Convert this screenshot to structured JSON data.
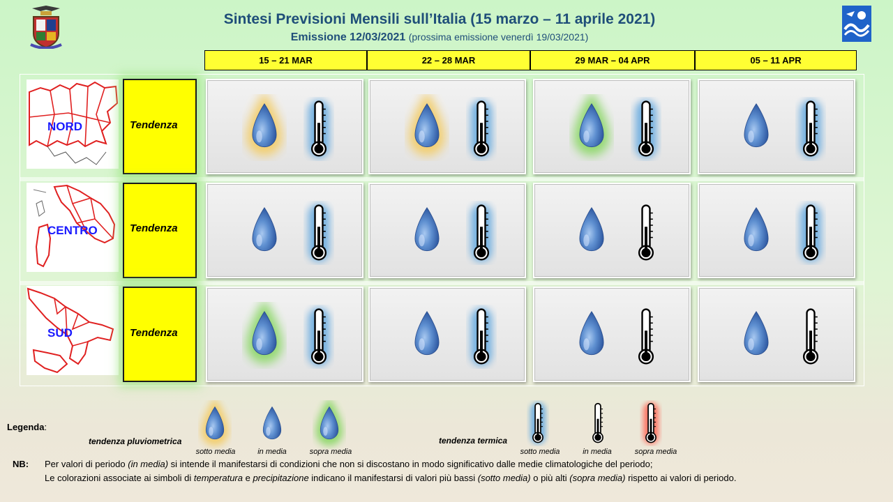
{
  "header": {
    "title": "Sintesi  Previsioni Mensili sull’Italia (15 marzo – 11 aprile 2021)",
    "emission": "Emissione 12/03/2021",
    "next_emission": "(prossima emissione venerdì 19/03/2021)"
  },
  "weeks": [
    "15 – 21 MAR",
    "22 – 28 MAR",
    "29 MAR – 04 APR",
    "05 – 11 APR"
  ],
  "tendenza_label": "Tendenza",
  "regions": [
    {
      "name": "NORD",
      "cells": [
        {
          "precip": "sotto media",
          "temp": "sotto media"
        },
        {
          "precip": "sotto media",
          "temp": "sotto media"
        },
        {
          "precip": "sopra media",
          "temp": "sotto media"
        },
        {
          "precip": "in media",
          "temp": "sotto media"
        }
      ]
    },
    {
      "name": "CENTRO",
      "cells": [
        {
          "precip": "in media",
          "temp": "sotto media"
        },
        {
          "precip": "in media",
          "temp": "sotto media"
        },
        {
          "precip": "in media",
          "temp": "in media"
        },
        {
          "precip": "in media",
          "temp": "sotto media"
        }
      ]
    },
    {
      "name": "SUD",
      "cells": [
        {
          "precip": "sopra media",
          "temp": "sotto media"
        },
        {
          "precip": "in media",
          "temp": "sotto media"
        },
        {
          "precip": "in media",
          "temp": "in media"
        },
        {
          "precip": "in media",
          "temp": "in media"
        }
      ]
    }
  ],
  "legend": {
    "label": "Legenda",
    "colon": ":",
    "pluvio_label": "tendenza pluviometrica",
    "termica_label": "tendenza termica",
    "sotto": "sotto media",
    "in_media": "in media",
    "sopra": "sopra media"
  },
  "colors": {
    "sotto_precip": "#f3cd6b",
    "sopra_precip": "#8fd86c",
    "sotto_temp": "#6eaee0",
    "sopra_temp": "#ff6f5f",
    "week_header": "#ffff33",
    "tendenza": "#ffff00",
    "title": "#1f4e79",
    "region_label": "#1a1aff"
  },
  "icons": [
    "rain-drop-icon",
    "thermometer-icon",
    "logo-emblem-icon",
    "logo-meteo-icon"
  ],
  "nb": {
    "label": "NB:",
    "line1_a": "Per valori di periodo ",
    "line1_b": "(in media)",
    "line1_c": " si intende il manifestarsi di condizioni che non si discostano in modo significativo dalle medie climatologiche del periodo;",
    "line2_a": "Le colorazioni associate ai simboli di ",
    "line2_b": "temperatura",
    "line2_c": " e ",
    "line2_d": "precipitazione",
    "line2_e": " indicano il manifestarsi di valori più bassi ",
    "line2_f": "(sotto media)",
    "line2_g": " o più alti ",
    "line2_h": "(sopra media)",
    "line2_i": " rispetto ai valori di periodo."
  }
}
